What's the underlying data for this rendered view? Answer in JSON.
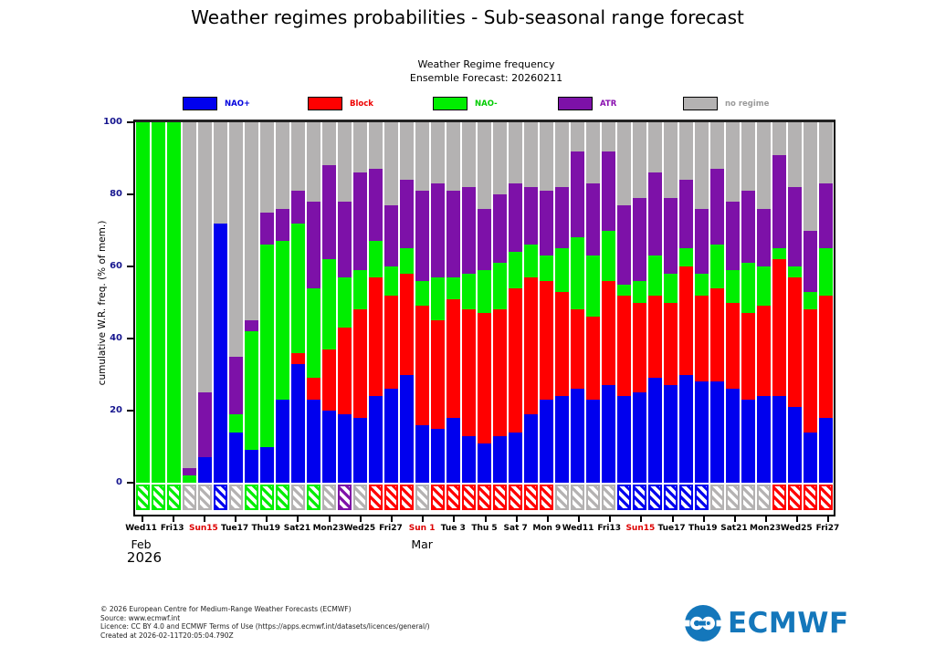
{
  "page_title": "Weather regimes probabilities - Sub-seasonal range forecast",
  "chart_header": {
    "line1": "Weather Regime frequency",
    "line2": "Ensemble Forecast: 20260211"
  },
  "legend": [
    {
      "label": "NAO+",
      "swatch": "#0000ee",
      "text_color": "#0000dd"
    },
    {
      "label": "Block",
      "swatch": "#ff0000",
      "text_color": "#ee0000"
    },
    {
      "label": "NAO-",
      "swatch": "#00ee00",
      "text_color": "#00cc00"
    },
    {
      "label": "ATR",
      "swatch": "#7d11a8",
      "text_color": "#8a10b0"
    },
    {
      "label": "no regime",
      "swatch": "#b4b2b2",
      "text_color": "#9a9a9a"
    }
  ],
  "footer": {
    "lines": [
      "© 2026 European Centre for Medium-Range Weather Forecasts (ECMWF)",
      "Source: www.ecmwf.int",
      "Licence: CC BY 4.0 and ECMWF Terms of Use (https://apps.ecmwf.int/datasets/licences/general/)",
      "Created at 2026-02-11T20:05:04.790Z"
    ]
  },
  "logo": {
    "text": "ECMWF",
    "color": "#1477bb"
  },
  "chart_data": {
    "type": "bar",
    "stacked": true,
    "title": "Weather Regime frequency",
    "subtitle": "Ensemble Forecast: 20260211",
    "ylabel": "cumulative W.R. freq. (% of mem.)",
    "ylim": [
      0,
      100
    ],
    "yticks": [
      0,
      20,
      40,
      60,
      80,
      100
    ],
    "grid": false,
    "legend_position": "top",
    "series_order": [
      "NAO+",
      "Block",
      "NAO-",
      "ATR",
      "no regime"
    ],
    "colors": {
      "NAO+": "#0000ee",
      "Block": "#ff0000",
      "NAO-": "#00ee00",
      "ATR": "#7d11a8",
      "no regime": "#b4b2b2"
    },
    "note": "bars give cumulative tops (%) for NAO+, Block, NAO-, ATR; 'no regime' fills to 100. dom = dominant regime hatched marker under axis",
    "bars": [
      {
        "cum": [
          0,
          0,
          100,
          100
        ],
        "dom": "NAO-"
      },
      {
        "cum": [
          0,
          0,
          100,
          100
        ],
        "dom": "NAO-"
      },
      {
        "cum": [
          0,
          0,
          100,
          100
        ],
        "dom": "NAO-"
      },
      {
        "cum": [
          0,
          0,
          2,
          4
        ],
        "dom": "no regime"
      },
      {
        "cum": [
          7,
          7,
          7,
          25
        ],
        "dom": "no regime"
      },
      {
        "cum": [
          72,
          72,
          72,
          72
        ],
        "dom": "NAO+"
      },
      {
        "cum": [
          14,
          14,
          19,
          35
        ],
        "dom": "no regime"
      },
      {
        "cum": [
          9,
          9,
          42,
          45
        ],
        "dom": "NAO-"
      },
      {
        "cum": [
          10,
          10,
          66,
          75
        ],
        "dom": "NAO-"
      },
      {
        "cum": [
          23,
          23,
          67,
          76
        ],
        "dom": "NAO-"
      },
      {
        "cum": [
          33,
          36,
          72,
          81
        ],
        "dom": "no regime"
      },
      {
        "cum": [
          23,
          29,
          54,
          78
        ],
        "dom": "NAO-"
      },
      {
        "cum": [
          20,
          37,
          62,
          88
        ],
        "dom": "no regime"
      },
      {
        "cum": [
          19,
          43,
          57,
          78
        ],
        "dom": "ATR"
      },
      {
        "cum": [
          18,
          48,
          59,
          86
        ],
        "dom": "no regime"
      },
      {
        "cum": [
          24,
          57,
          67,
          87
        ],
        "dom": "Block"
      },
      {
        "cum": [
          26,
          52,
          60,
          77
        ],
        "dom": "Block"
      },
      {
        "cum": [
          30,
          58,
          65,
          84
        ],
        "dom": "Block"
      },
      {
        "cum": [
          16,
          49,
          56,
          81
        ],
        "dom": "no regime"
      },
      {
        "cum": [
          15,
          45,
          57,
          83
        ],
        "dom": "Block"
      },
      {
        "cum": [
          18,
          51,
          57,
          81
        ],
        "dom": "Block"
      },
      {
        "cum": [
          13,
          48,
          58,
          82
        ],
        "dom": "Block"
      },
      {
        "cum": [
          11,
          47,
          59,
          76
        ],
        "dom": "Block"
      },
      {
        "cum": [
          13,
          48,
          61,
          80
        ],
        "dom": "Block"
      },
      {
        "cum": [
          14,
          54,
          64,
          83
        ],
        "dom": "Block"
      },
      {
        "cum": [
          19,
          57,
          66,
          82
        ],
        "dom": "Block"
      },
      {
        "cum": [
          23,
          56,
          63,
          81
        ],
        "dom": "Block"
      },
      {
        "cum": [
          24,
          53,
          65,
          82
        ],
        "dom": "no regime"
      },
      {
        "cum": [
          26,
          48,
          68,
          92
        ],
        "dom": "no regime"
      },
      {
        "cum": [
          23,
          46,
          63,
          83
        ],
        "dom": "no regime"
      },
      {
        "cum": [
          27,
          56,
          70,
          92
        ],
        "dom": "no regime"
      },
      {
        "cum": [
          24,
          52,
          55,
          77
        ],
        "dom": "NAO+"
      },
      {
        "cum": [
          25,
          50,
          56,
          79
        ],
        "dom": "NAO+"
      },
      {
        "cum": [
          29,
          52,
          63,
          86
        ],
        "dom": "NAO+"
      },
      {
        "cum": [
          27,
          50,
          58,
          79
        ],
        "dom": "NAO+"
      },
      {
        "cum": [
          30,
          60,
          65,
          84
        ],
        "dom": "NAO+"
      },
      {
        "cum": [
          28,
          52,
          58,
          76
        ],
        "dom": "NAO+"
      },
      {
        "cum": [
          28,
          54,
          66,
          87
        ],
        "dom": "no regime"
      },
      {
        "cum": [
          26,
          50,
          59,
          78
        ],
        "dom": "no regime"
      },
      {
        "cum": [
          23,
          47,
          61,
          81
        ],
        "dom": "no regime"
      },
      {
        "cum": [
          24,
          49,
          60,
          76
        ],
        "dom": "no regime"
      },
      {
        "cum": [
          24,
          62,
          65,
          91
        ],
        "dom": "Block"
      },
      {
        "cum": [
          21,
          57,
          60,
          82
        ],
        "dom": "Block"
      },
      {
        "cum": [
          14,
          48,
          53,
          70
        ],
        "dom": "Block"
      },
      {
        "cum": [
          18,
          52,
          65,
          83
        ],
        "dom": "Block"
      }
    ],
    "x_axis": {
      "ticks": [
        {
          "bar": 0,
          "label": "Wed11"
        },
        {
          "bar": 2,
          "label": "Fri13"
        },
        {
          "bar": 4,
          "label": "Sun15",
          "red": true
        },
        {
          "bar": 6,
          "label": "Tue17"
        },
        {
          "bar": 8,
          "label": "Thu19"
        },
        {
          "bar": 10,
          "label": "Sat21"
        },
        {
          "bar": 12,
          "label": "Mon23"
        },
        {
          "bar": 14,
          "label": "Wed25"
        },
        {
          "bar": 16,
          "label": "Fri27"
        },
        {
          "bar": 18,
          "label": "Sun 1",
          "red": true
        },
        {
          "bar": 20,
          "label": "Tue 3"
        },
        {
          "bar": 22,
          "label": "Thu 5"
        },
        {
          "bar": 24,
          "label": "Sat 7"
        },
        {
          "bar": 26,
          "label": "Mon 9"
        },
        {
          "bar": 28,
          "label": "Wed11"
        },
        {
          "bar": 30,
          "label": "Fri13"
        },
        {
          "bar": 32,
          "label": "Sun15",
          "red": true
        },
        {
          "bar": 34,
          "label": "Tue17"
        },
        {
          "bar": 36,
          "label": "Thu19"
        },
        {
          "bar": 38,
          "label": "Sat21"
        },
        {
          "bar": 40,
          "label": "Mon23"
        },
        {
          "bar": 42,
          "label": "Wed25"
        },
        {
          "bar": 44,
          "label": "Fri27"
        }
      ],
      "months": [
        {
          "bar": 0,
          "label": "Feb"
        },
        {
          "bar": 18,
          "label": "Mar"
        }
      ],
      "year": "2026"
    }
  }
}
